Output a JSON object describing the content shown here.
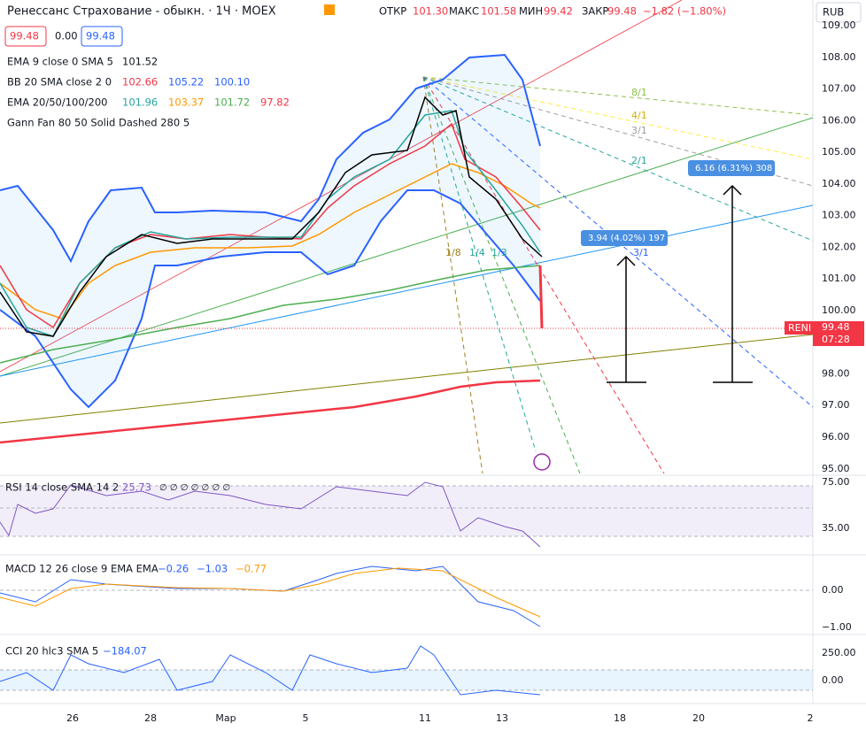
{
  "header": {
    "title": "Ренессанс Страхование - обыкн. · 1Ч · MOEX",
    "open_label": "ОТКР",
    "open": "101.30",
    "high_label": "МАКС",
    "high": "101.58",
    "low_label": "МИН",
    "low": "99.42",
    "close_label": "ЗАКР",
    "close": "99.48",
    "change": "−1.82 (−1.80%)",
    "currency": "RUB"
  },
  "quote": {
    "bid": "99.48",
    "spread": "0.00",
    "ask": "99.48"
  },
  "indicators": [
    {
      "name": "EMA 9 close 0 SMA 5",
      "values": [
        "101.52"
      ]
    },
    {
      "name": "BB 20 SMA close 2 0",
      "values": [
        "102.66",
        "105.22",
        "100.10"
      ]
    },
    {
      "name": "EMA 20/50/100/200",
      "values": [
        "101.96",
        "103.37",
        "101.72",
        "97.82"
      ]
    },
    {
      "name": "Gann Fan 80 50 Solid Dashed 280 5",
      "values": []
    }
  ],
  "price_axis": [
    "109.00",
    "108.00",
    "107.00",
    "106.00",
    "105.00",
    "104.00",
    "103.00",
    "102.00",
    "101.00",
    "100.00",
    "99.00",
    "98.00",
    "97.00",
    "96.00",
    "95.00"
  ],
  "price_tag": {
    "symbol": "RENI",
    "price": "99.48",
    "timer": "07:28"
  },
  "fan_labels": [
    "8/1",
    "4/1",
    "3/1",
    "2/1",
    "1/8",
    "1/4",
    "1/3",
    "3/1"
  ],
  "measures": [
    "3.94 (4.02%) 197",
    "6.16 (6.31%) 308"
  ],
  "rsi": {
    "name": "RSI 14 close SMA 14 2",
    "value": "25.73",
    "extra": "∅ ∅ ∅ ∅ ∅ ∅ ∅",
    "axis": [
      "75.00",
      "35.00"
    ]
  },
  "macd": {
    "name": "MACD 12 26 close 9 EMA EMA",
    "values": [
      "−0.26",
      "−1.03",
      "−0.77"
    ],
    "axis": [
      "0.00",
      "−1.00"
    ]
  },
  "cci": {
    "name": "CCI 20 hlc3 SMA 5",
    "value": "−184.07",
    "axis": [
      "250.00",
      "0.00"
    ]
  },
  "time_axis": [
    "26",
    "28",
    "Мар",
    "5",
    "11",
    "13",
    "18",
    "20",
    "2"
  ]
}
